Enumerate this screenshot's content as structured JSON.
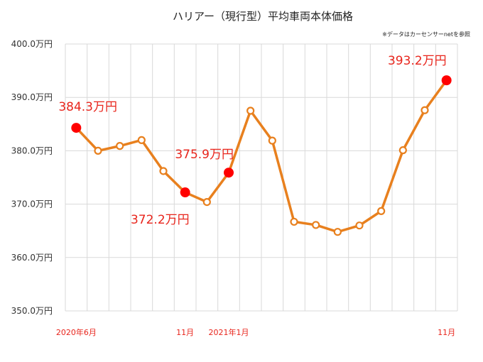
{
  "chart_data": {
    "type": "line",
    "title": "ハリアー（現行型）平均車両本体価格",
    "source_note": "※データはカーセンサーnetを参照",
    "xlabel": "",
    "ylabel": "",
    "ylim": [
      350,
      400
    ],
    "y_ticks": [
      "400.0万円",
      "390.0万円",
      "380.0万円",
      "370.0万円",
      "360.0万円",
      "350.0万円"
    ],
    "x_labels": [
      {
        "index": 0,
        "text": "2020年6月"
      },
      {
        "index": 5,
        "text": "11月"
      },
      {
        "index": 7,
        "text": "2021年1月"
      },
      {
        "index": 17,
        "text": "11月"
      }
    ],
    "categories": [
      "2020-06",
      "2020-07",
      "2020-08",
      "2020-09",
      "2020-10",
      "2020-11",
      "2020-12",
      "2021-01",
      "2021-02",
      "2021-03",
      "2021-04",
      "2021-05",
      "2021-06",
      "2021-07",
      "2021-08",
      "2021-09",
      "2021-10",
      "2021-11"
    ],
    "series": [
      {
        "values": [
          384.3,
          380.0,
          380.9,
          382.0,
          376.2,
          372.2,
          370.4,
          375.9,
          387.5,
          381.9,
          366.7,
          366.1,
          364.8,
          366.0,
          368.7,
          380.1,
          387.6,
          393.2
        ]
      }
    ],
    "highlights": [
      {
        "index": 0,
        "label": "384.3万円"
      },
      {
        "index": 5,
        "label": "372.2万円"
      },
      {
        "index": 7,
        "label": "375.9万円"
      },
      {
        "index": 17,
        "label": "393.2万円"
      }
    ],
    "grid": true,
    "colors": {
      "line": "#e8801e",
      "highlight": "#ff0000",
      "label": "#e8251c",
      "grid": "#d9d9d9"
    }
  }
}
